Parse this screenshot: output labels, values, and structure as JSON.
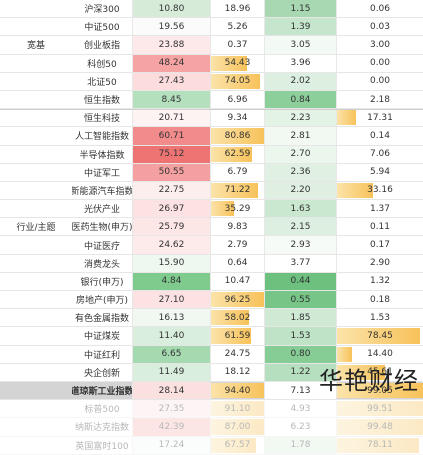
{
  "groups": [
    {
      "label": "宽基",
      "start_row": 0,
      "end_row": 5
    },
    {
      "label": "行业/主题",
      "start_row": 6,
      "end_row": 18
    }
  ],
  "rows": [
    {
      "name": "沪深300",
      "v1": "10.80",
      "v2": "18.96",
      "v3": "1.15",
      "v4": "0.06",
      "c1": "#d6ecd9",
      "f2": 0.0,
      "c3": "#a8d8b2",
      "f4": 0.0
    },
    {
      "name": "中证500",
      "v1": "19.56",
      "v2": "5.26",
      "v3": "1.39",
      "v4": "0.03",
      "c1": "#fbfbfb",
      "f2": 0.0,
      "c3": "#c5e6cd",
      "f4": 0.0
    },
    {
      "name": "创业板指",
      "v1": "23.88",
      "v2": "0.37",
      "v3": "3.05",
      "v4": "3.00",
      "c1": "#fde9e9",
      "f2": 0.0,
      "c3": "#f3f9f4",
      "f4": 0.0
    },
    {
      "name": "科创50",
      "v1": "48.24",
      "v2": "54.43",
      "v3": "3.96",
      "v4": "0.00",
      "c1": "#f5a3a3",
      "f2": 0.68,
      "c3": "#ffffff",
      "f4": 0.0
    },
    {
      "name": "北证50",
      "v1": "27.43",
      "v2": "74.05",
      "v3": "2.02",
      "v4": "0.00",
      "c1": "#fcdcdc",
      "f2": 0.92,
      "c3": "#dcefe0",
      "f4": 0.0
    },
    {
      "name": "恒生指数",
      "v1": "8.45",
      "v2": "6.96",
      "v3": "0.84",
      "v4": "2.18",
      "c1": "#b4e0be",
      "f2": 0.0,
      "c3": "#8dcf9b",
      "f4": 0.0
    },
    {
      "name": "恒生科技",
      "v1": "20.71",
      "v2": "9.34",
      "v3": "2.23",
      "v4": "17.31",
      "c1": "#fef3f3",
      "f2": 0.0,
      "c3": "#e3f3e6",
      "f4": 0.22
    },
    {
      "name": "人工智能指数",
      "v1": "60.71",
      "v2": "80.86",
      "v3": "2.81",
      "v4": "0.14",
      "c1": "#f28b8b",
      "f2": 1.0,
      "c3": "#f1f9f2",
      "f4": 0.0
    },
    {
      "name": "半导体指数",
      "v1": "75.12",
      "v2": "62.59",
      "v3": "2.70",
      "v4": "7.06",
      "c1": "#ee7474",
      "f2": 0.78,
      "c3": "#ebf6ed",
      "f4": 0.0
    },
    {
      "name": "中证军工",
      "v1": "50.55",
      "v2": "6.79",
      "v3": "2.36",
      "v4": "5.94",
      "c1": "#f4a0a0",
      "f2": 0.0,
      "c3": "#e0f1e3",
      "f4": 0.0
    },
    {
      "name": "新能源汽车指数",
      "v1": "22.75",
      "v2": "71.22",
      "v3": "2.20",
      "v4": "33.16",
      "c1": "#fdeeee",
      "f2": 0.88,
      "c3": "#dff0e2",
      "f4": 0.42
    },
    {
      "name": "光伏产业",
      "v1": "26.97",
      "v2": "35.29",
      "v3": "1.63",
      "v4": "1.37",
      "c1": "#fce2e2",
      "f2": 0.44,
      "c3": "#c9e8cf",
      "f4": 0.0
    },
    {
      "name": "医药生物(申万)",
      "v1": "25.79",
      "v2": "9.83",
      "v3": "2.15",
      "v4": "0.11",
      "c1": "#fde6e6",
      "f2": 0.0,
      "c3": "#dcefe0",
      "f4": 0.0
    },
    {
      "name": "中证医疗",
      "v1": "24.62",
      "v2": "2.79",
      "v3": "2.93",
      "v4": "0.17",
      "c1": "#fdeaea",
      "f2": 0.0,
      "c3": "#f6fbf7",
      "f4": 0.0
    },
    {
      "name": "消费龙头",
      "v1": "15.90",
      "v2": "0.64",
      "v3": "3.77",
      "v4": "2.90",
      "c1": "#eef7f0",
      "f2": 0.0,
      "c3": "#ffffff",
      "f4": 0.0
    },
    {
      "name": "银行(申万)",
      "v1": "4.84",
      "v2": "10.47",
      "v3": "0.44",
      "v4": "1.32",
      "c1": "#7fcb8e",
      "f2": 0.0,
      "c3": "#6dc07e",
      "f4": 0.0
    },
    {
      "name": "房地产(申万)",
      "v1": "27.10",
      "v2": "96.25",
      "v3": "0.55",
      "v4": "0.18",
      "c1": "#fce2e2",
      "f2": 1.0,
      "c3": "#78c588",
      "f4": 0.0
    },
    {
      "name": "有色金属指数",
      "v1": "16.13",
      "v2": "58.02",
      "v3": "1.85",
      "v4": "1.53",
      "c1": "#f0f8f1",
      "f2": 0.72,
      "c3": "#cfe9d5",
      "f4": 0.0
    },
    {
      "name": "中证煤炭",
      "v1": "11.40",
      "v2": "61.59",
      "v3": "1.53",
      "v4": "78.45",
      "c1": "#d9eedc",
      "f2": 0.76,
      "c3": "#bfe3c7",
      "f4": 0.97
    },
    {
      "name": "中证红利",
      "v1": "6.65",
      "v2": "24.75",
      "v3": "0.80",
      "v4": "14.40",
      "c1": "#a5dab1",
      "f2": 0.0,
      "c3": "#86cc95",
      "f4": 0.18
    },
    {
      "name": "央企创新",
      "v1": "11.49",
      "v2": "18.12",
      "v3": "1.22",
      "v4": "45.61",
      "c1": "#d9eedc",
      "f2": 0.0,
      "c3": "#b6dfc0",
      "f4": 0.56
    },
    {
      "name": "道琼斯工业指数",
      "v1": "28.14",
      "v2": "94.40",
      "v3": "7.13",
      "v4": "99.05",
      "c1": "#fbe0e0",
      "f2": 1.0,
      "c3": "#ffffff",
      "f4": 1.0
    },
    {
      "name": "标普500",
      "v1": "27.35",
      "v2": "91.10",
      "v3": "4.93",
      "v4": "99.51",
      "c1": "#fce4e4",
      "f2": 1.0,
      "c3": "#ffffff",
      "f4": 1.0
    },
    {
      "name": "纳斯达克指数",
      "v1": "42.39",
      "v2": "87.00",
      "v3": "6.23",
      "v4": "99.48",
      "c1": "#f6b6b6",
      "f2": 1.0,
      "c3": "#ffffff",
      "f4": 1.0
    },
    {
      "name": "英国富时100",
      "v1": "17.24",
      "v2": "67.57",
      "v3": "1.78",
      "v4": "78.11",
      "c1": "#f6fbf7",
      "f2": 0.85,
      "c3": "#d8eedc",
      "f4": 0.95
    }
  ],
  "highlight_row": 21,
  "faded_from_row": 22,
  "watermark": "华艳财经",
  "colors": {
    "bar_gold": "#f7c25a",
    "row_highlight": "#d4d4d4"
  }
}
